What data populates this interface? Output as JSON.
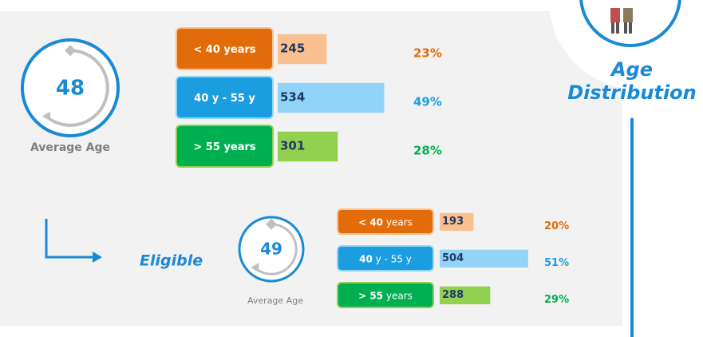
{
  "title": "Age Distribution",
  "overall": {
    "average": "48",
    "average_label": "Average Age",
    "groups": [
      {
        "label_bold": "< 40 years",
        "label_rest": "",
        "value": 245,
        "percent": "23%"
      },
      {
        "label_bold": "40 y - 55 y",
        "label_rest": "",
        "value": 534,
        "percent": "49%"
      },
      {
        "label_bold": "> 55 years",
        "label_rest": "",
        "value": 301,
        "percent": "28%"
      }
    ]
  },
  "eligible": {
    "label": "Eligible",
    "average": "49",
    "average_label": "Average Age",
    "groups": [
      {
        "label_bold": "< 40",
        "label_rest": "years",
        "value": 193,
        "percent": "20%"
      },
      {
        "label_bold": "40",
        "label_rest": "y - 55 y",
        "value": 504,
        "percent": "51%"
      },
      {
        "label_bold": "> 55",
        "label_rest": "years",
        "value": 288,
        "percent": "29%"
      }
    ]
  }
}
